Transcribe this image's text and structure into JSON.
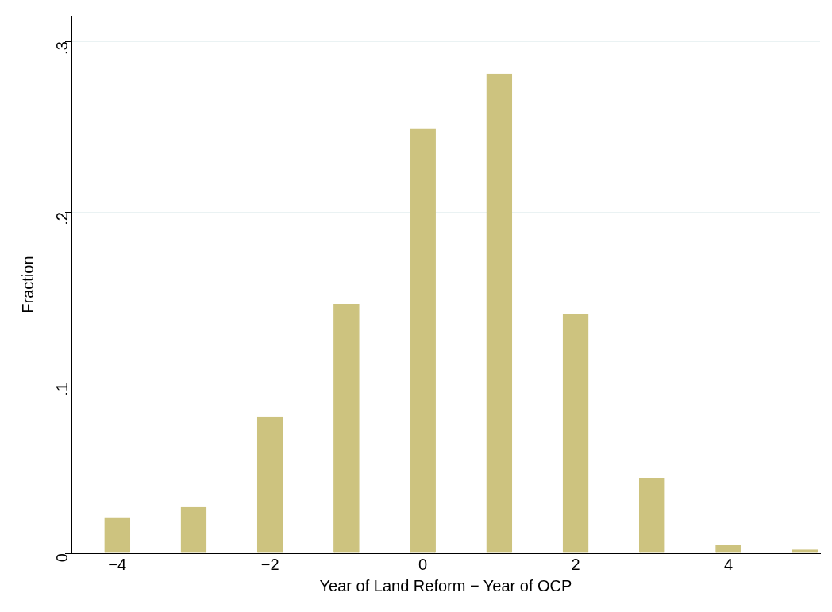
{
  "chart_data": {
    "type": "bar",
    "xlabel": "Year of Land Reform − Year of OCP",
    "ylabel": "Fraction",
    "x": [
      -4,
      -3,
      -2,
      -1,
      0,
      1,
      2,
      3,
      4,
      5
    ],
    "values": [
      0.021,
      0.027,
      0.08,
      0.146,
      0.249,
      0.281,
      0.14,
      0.044,
      0.005,
      0.002
    ],
    "color": "#cdc37f",
    "xlim": [
      -4.6,
      5.2
    ],
    "xticks": [
      {
        "value": -4,
        "label": "−4"
      },
      {
        "value": -2,
        "label": "−2"
      },
      0,
      2,
      4
    ],
    "ylim": [
      0,
      0.315
    ],
    "yticks": [
      0,
      {
        "value": 0.1,
        "label": ".1"
      },
      {
        "value": 0.2,
        "label": ".2"
      },
      {
        "value": 0.3,
        "label": ".3"
      }
    ],
    "grid": "y",
    "legend": false
  }
}
